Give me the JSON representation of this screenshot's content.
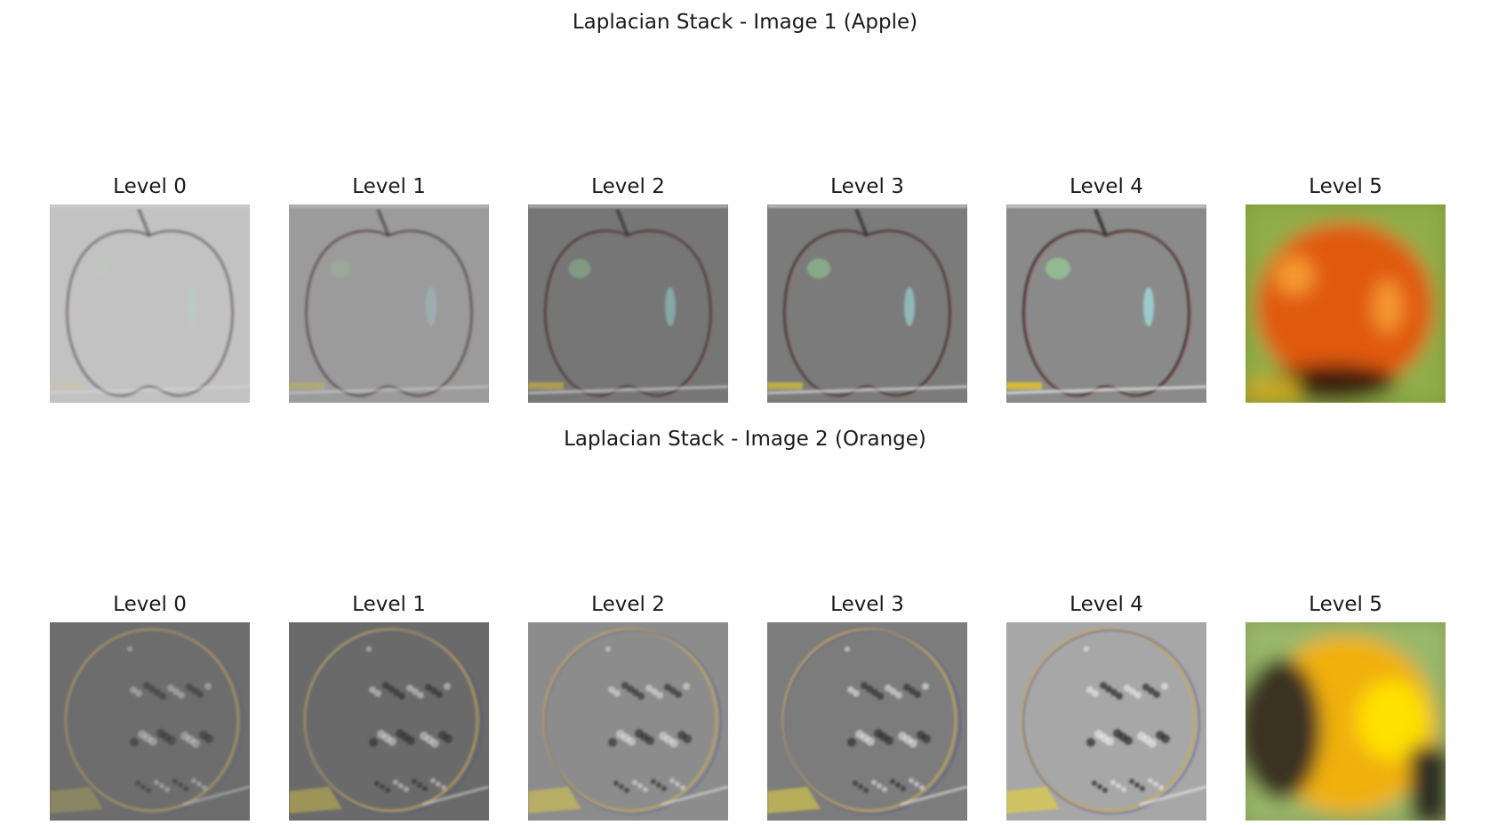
{
  "figures": [
    {
      "title": "Laplacian Stack - Image 1 (Apple)",
      "fruit": "apple",
      "levels": [
        {
          "label": "Level 0",
          "kind": "detail",
          "bg": "#c2c2c2",
          "contrast": 0.15
        },
        {
          "label": "Level 1",
          "kind": "detail",
          "bg": "#9b9b9b",
          "contrast": 0.35
        },
        {
          "label": "Level 2",
          "kind": "detail",
          "bg": "#767676",
          "contrast": 0.6
        },
        {
          "label": "Level 3",
          "kind": "detail",
          "bg": "#7b7b7b",
          "contrast": 0.8
        },
        {
          "label": "Level 4",
          "kind": "detail",
          "bg": "#8a8a8a",
          "contrast": 1.0
        },
        {
          "label": "Level 5",
          "kind": "blur",
          "bg": "#7f9a3a",
          "fruit_color": "#e05a10",
          "highlight": "#f59a30",
          "shadow": "#3a1a08"
        }
      ]
    },
    {
      "title": "Laplacian Stack - Image 2 (Orange)",
      "fruit": "orange",
      "levels": [
        {
          "label": "Level 0",
          "kind": "detail",
          "bg": "#6d6d6d",
          "contrast": 0.3
        },
        {
          "label": "Level 1",
          "kind": "detail",
          "bg": "#6a6a6a",
          "contrast": 0.5
        },
        {
          "label": "Level 2",
          "kind": "detail",
          "bg": "#8c8c8c",
          "contrast": 0.6
        },
        {
          "label": "Level 3",
          "kind": "detail",
          "bg": "#7c7c7c",
          "contrast": 0.7
        },
        {
          "label": "Level 4",
          "kind": "detail",
          "bg": "#a7a7a7",
          "contrast": 0.8
        },
        {
          "label": "Level 5",
          "kind": "blur",
          "bg": "#8aa05a",
          "fruit_color": "#f0b010",
          "highlight": "#ffe000",
          "shadow": "#3a3020"
        }
      ]
    }
  ]
}
